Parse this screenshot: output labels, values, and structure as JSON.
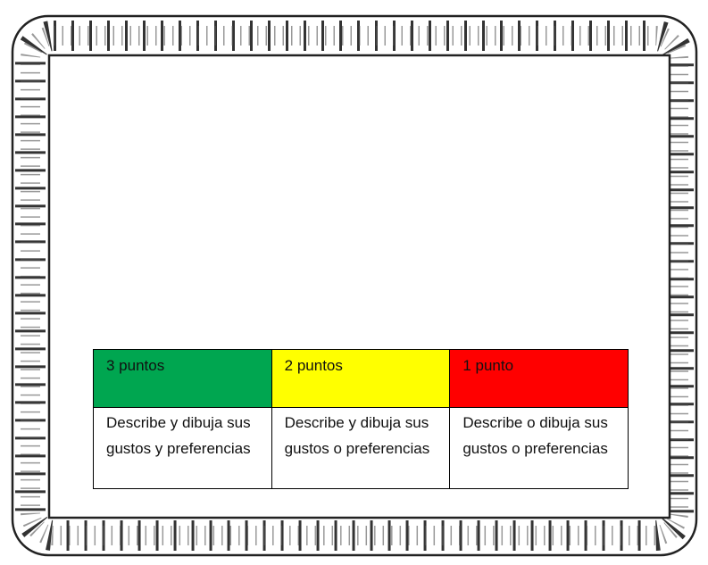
{
  "table": {
    "header": [
      "3 puntos",
      "2 puntos",
      "1 punto"
    ],
    "rows": [
      [
        "Describe y dibuja sus gustos y preferencias",
        "Describe y dibuja sus gustos o preferencias",
        "Describe o dibuja sus gustos o preferencias"
      ]
    ]
  }
}
